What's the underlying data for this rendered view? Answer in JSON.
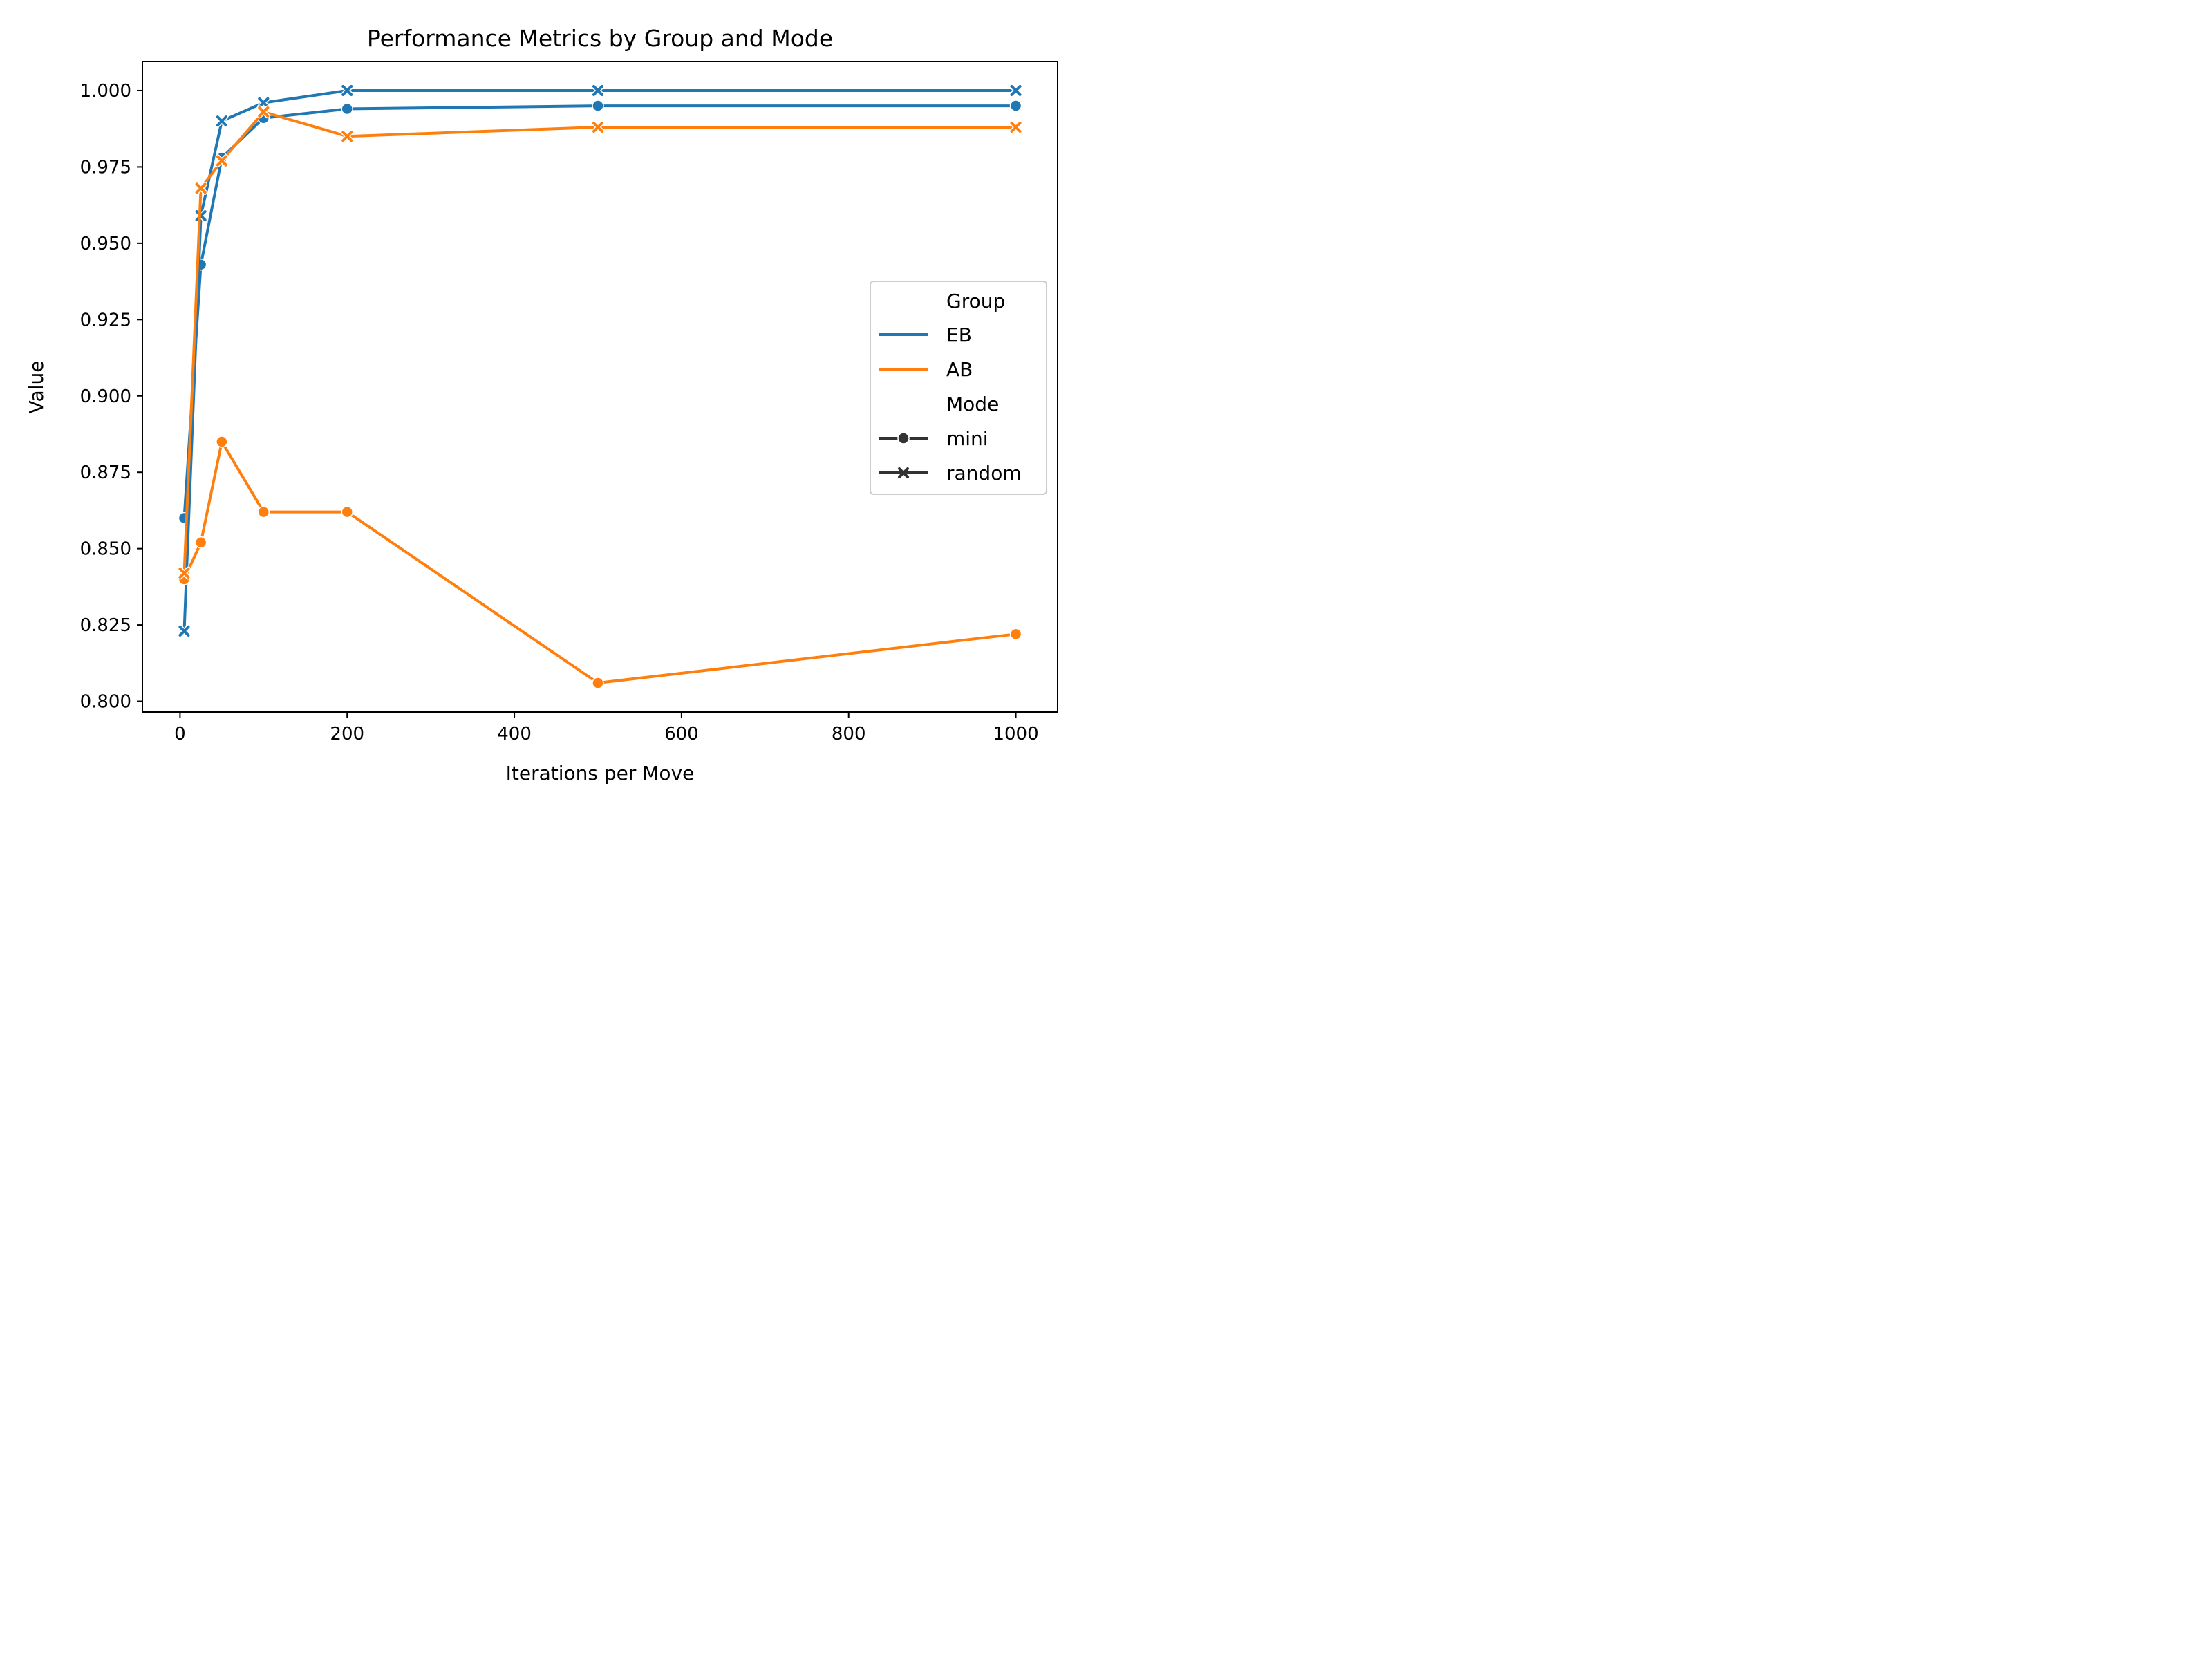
{
  "chart_data": {
    "type": "line",
    "title": "Performance Metrics by Group and Mode",
    "xlabel": "Iterations per Move",
    "ylabel": "Value",
    "xlim": [
      -45,
      1050
    ],
    "ylim": [
      0.7965,
      1.0095
    ],
    "xticks": [
      0,
      200,
      400,
      600,
      800,
      1000
    ],
    "xtick_labels": [
      "0",
      "200",
      "400",
      "600",
      "800",
      "1000"
    ],
    "yticks": [
      0.8,
      0.825,
      0.85,
      0.875,
      0.9,
      0.925,
      0.95,
      0.975,
      1.0
    ],
    "ytick_labels": [
      "0.800",
      "0.825",
      "0.850",
      "0.875",
      "0.900",
      "0.925",
      "0.950",
      "0.975",
      "1.000"
    ],
    "grid": false,
    "legend_position": "center-right",
    "legend": {
      "group_title": "Group",
      "groups": [
        {
          "name": "EB",
          "color": "#1f77b4"
        },
        {
          "name": "AB",
          "color": "#ff7f0e"
        }
      ],
      "mode_title": "Mode",
      "modes": [
        {
          "name": "mini",
          "marker": "circle"
        },
        {
          "name": "random",
          "marker": "x"
        }
      ]
    },
    "series": [
      {
        "group": "EB",
        "mode": "mini",
        "color": "#1f77b4",
        "marker": "circle",
        "x": [
          5,
          25,
          50,
          100,
          200,
          500,
          1000
        ],
        "y": [
          0.86,
          0.943,
          0.978,
          0.991,
          0.994,
          0.995,
          0.995
        ]
      },
      {
        "group": "EB",
        "mode": "random",
        "color": "#1f77b4",
        "marker": "x",
        "x": [
          5,
          25,
          50,
          100,
          200,
          500,
          1000
        ],
        "y": [
          0.823,
          0.959,
          0.99,
          0.996,
          1.0,
          1.0,
          1.0
        ]
      },
      {
        "group": "AB",
        "mode": "mini",
        "color": "#ff7f0e",
        "marker": "circle",
        "x": [
          5,
          25,
          50,
          100,
          200,
          500,
          1000
        ],
        "y": [
          0.84,
          0.852,
          0.885,
          0.862,
          0.862,
          0.806,
          0.822
        ]
      },
      {
        "group": "AB",
        "mode": "random",
        "color": "#ff7f0e",
        "marker": "x",
        "x": [
          5,
          25,
          50,
          100,
          200,
          500,
          1000
        ],
        "y": [
          0.842,
          0.968,
          0.977,
          0.993,
          0.985,
          0.988,
          0.988
        ]
      }
    ]
  }
}
